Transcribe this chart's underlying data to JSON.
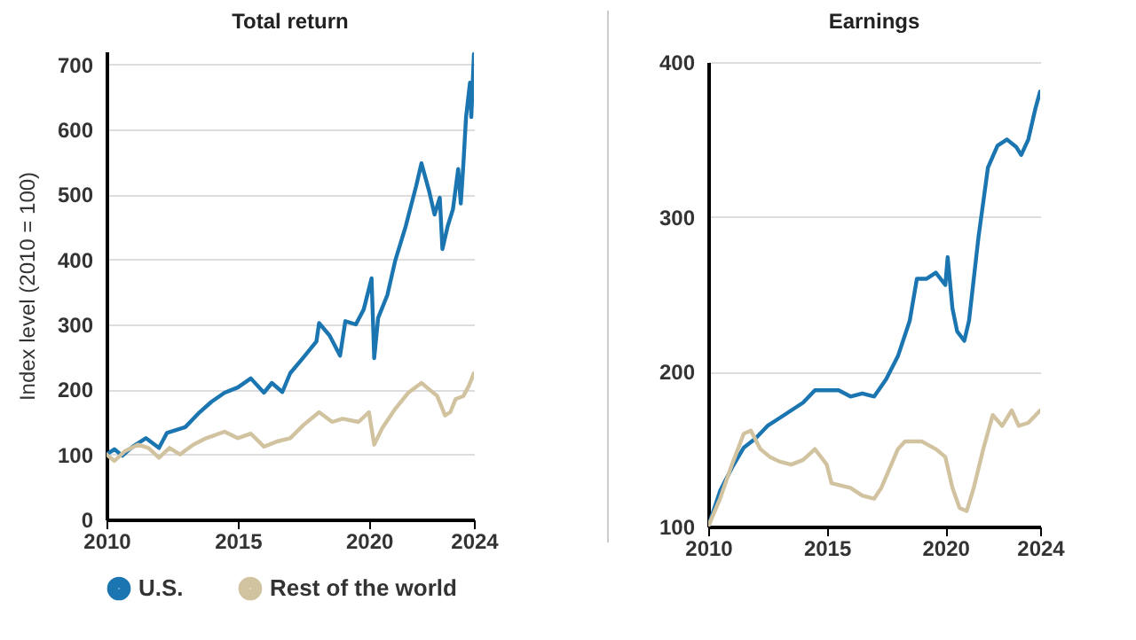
{
  "chart_data": [
    {
      "type": "line",
      "title": "Total return",
      "ylabel": "Index level (2010 = 100)",
      "xlim": [
        2010,
        2024
      ],
      "xticks": [
        2010,
        2015,
        2020,
        2024
      ],
      "ylim": [
        0,
        720
      ],
      "yticks": [
        0,
        100,
        200,
        300,
        400,
        500,
        600,
        700
      ],
      "grid": "y",
      "legend": "bottom",
      "series": [
        {
          "name": "U.S.",
          "color": "#1a75b0",
          "x": [
            2010,
            2010.3,
            2010.6,
            2011,
            2011.5,
            2012,
            2012.3,
            2013,
            2013.5,
            2014,
            2014.5,
            2015,
            2015.5,
            2016,
            2016.3,
            2016.7,
            2017,
            2017.5,
            2018,
            2018.1,
            2018.5,
            2018.9,
            2019.1,
            2019.5,
            2019.8,
            2020.1,
            2020.2,
            2020.35,
            2020.7,
            2021,
            2021.4,
            2021.8,
            2022,
            2022.3,
            2022.5,
            2022.7,
            2022.8,
            2023,
            2023.2,
            2023.4,
            2023.5,
            2023.6,
            2023.7,
            2023.85,
            2023.9,
            2024
          ],
          "values": [
            100,
            108,
            98,
            112,
            125,
            110,
            133,
            142,
            163,
            181,
            195,
            203,
            217,
            195,
            210,
            196,
            225,
            249,
            274,
            302,
            283,
            252,
            305,
            300,
            323,
            371,
            248,
            310,
            345,
            398,
            451,
            513,
            548,
            504,
            469,
            495,
            416,
            451,
            477,
            539,
            486,
            548,
            619,
            672,
            619,
            716
          ]
        },
        {
          "name": "Rest of the world",
          "color": "#d2c3a0",
          "x": [
            2010,
            2010.3,
            2010.7,
            2011.2,
            2011.6,
            2012,
            2012.4,
            2012.8,
            2013.3,
            2013.8,
            2014.5,
            2015,
            2015.5,
            2016,
            2016.5,
            2017,
            2017.5,
            2018.1,
            2018.6,
            2019,
            2019.6,
            2020,
            2020.2,
            2020.5,
            2021,
            2021.5,
            2022,
            2022.3,
            2022.6,
            2022.9,
            2023.1,
            2023.3,
            2023.6,
            2023.8,
            2024
          ],
          "values": [
            100,
            90,
            105,
            115,
            110,
            95,
            110,
            100,
            115,
            125,
            135,
            125,
            132,
            112,
            120,
            125,
            145,
            165,
            150,
            155,
            150,
            165,
            115,
            140,
            170,
            195,
            210,
            200,
            190,
            160,
            165,
            185,
            190,
            205,
            225
          ]
        }
      ]
    },
    {
      "type": "line",
      "title": "Earnings",
      "xlim": [
        2010,
        2024
      ],
      "xticks": [
        2010,
        2015,
        2020,
        2024
      ],
      "ylim": [
        100,
        400
      ],
      "yticks": [
        100,
        200,
        300,
        400
      ],
      "grid": "y",
      "series": [
        {
          "color": "#1a75b0",
          "x": [
            2010,
            2010.5,
            2011,
            2011.5,
            2012,
            2012.5,
            2013,
            2014,
            2014.5,
            2015.5,
            2016,
            2016.5,
            2017,
            2017.5,
            2018,
            2018.5,
            2018.8,
            2019.2,
            2019.6,
            2020,
            2020.1,
            2020.3,
            2020.5,
            2020.8,
            2021,
            2021.4,
            2021.8,
            2022.2,
            2022.6,
            2023,
            2023.2,
            2023.5,
            2023.8,
            2024
          ],
          "values": [
            100,
            123,
            138,
            151,
            157,
            165,
            170,
            180,
            188,
            188,
            184,
            186,
            184,
            195,
            210,
            233,
            260,
            260,
            264,
            256,
            274,
            241,
            226,
            220,
            233,
            287,
            332,
            346,
            350,
            345,
            340,
            350,
            370,
            381
          ]
        },
        {
          "color": "#d2c3a0",
          "x": [
            2010,
            2010.5,
            2011,
            2011.5,
            2011.8,
            2012.2,
            2012.6,
            2013,
            2013.5,
            2014,
            2014.5,
            2015,
            2015.2,
            2016,
            2016.5,
            2017,
            2017.3,
            2018,
            2018.3,
            2019,
            2019.6,
            2020,
            2020.3,
            2020.6,
            2020.9,
            2021.2,
            2021.6,
            2022,
            2022.4,
            2022.8,
            2023.1,
            2023.5,
            2024
          ],
          "values": [
            100,
            118,
            140,
            160,
            162,
            150,
            145,
            142,
            140,
            143,
            150,
            140,
            128,
            125,
            120,
            118,
            125,
            150,
            155,
            155,
            150,
            145,
            125,
            112,
            110,
            125,
            150,
            172,
            165,
            175,
            165,
            167,
            175
          ]
        }
      ]
    }
  ]
}
